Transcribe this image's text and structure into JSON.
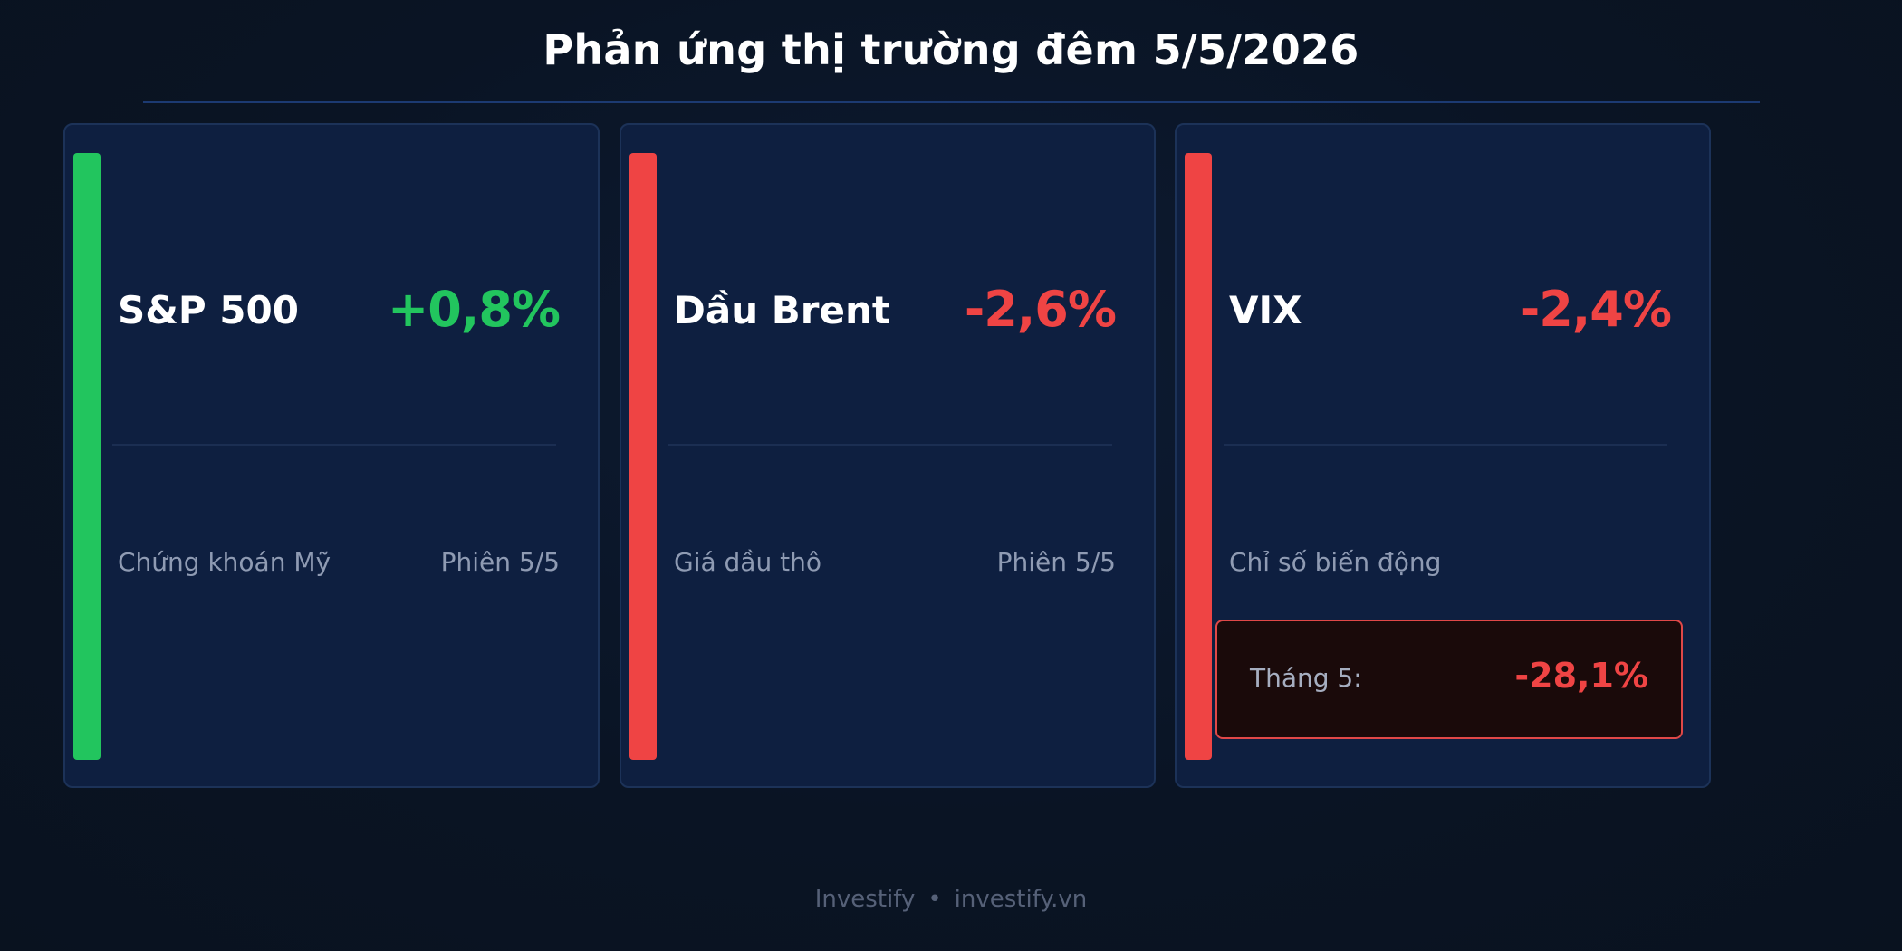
{
  "title": "Phản ứng thị trường đêm 5/5/2026",
  "cards": [
    {
      "name": "S&P 500",
      "change": "+0,8%",
      "subtitle": "Chứng khoán Mỹ",
      "session": "Phiên 5/5",
      "direction": "up",
      "accent_color": "#22c55e"
    },
    {
      "name": "Dầu Brent",
      "change": "-2,6%",
      "subtitle": "Giá dầu thô",
      "session": "Phiên 5/5",
      "direction": "down",
      "accent_color": "#ef4444"
    },
    {
      "name": "VIX",
      "change": "-2,4%",
      "subtitle": "Chỉ số biến động",
      "direction": "down",
      "accent_color": "#ef4444",
      "month_label": "Tháng 5:",
      "month_value": "-28,1%"
    }
  ],
  "footer": {
    "brand": "Investify",
    "separator": "•",
    "url": "investify.vn"
  }
}
